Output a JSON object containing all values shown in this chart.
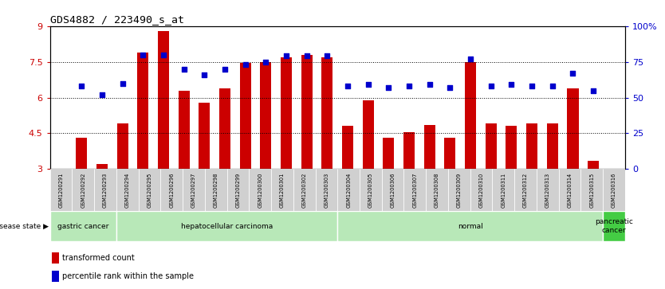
{
  "title": "GDS4882 / 223490_s_at",
  "samples": [
    "GSM1200291",
    "GSM1200292",
    "GSM1200293",
    "GSM1200294",
    "GSM1200295",
    "GSM1200296",
    "GSM1200297",
    "GSM1200298",
    "GSM1200299",
    "GSM1200300",
    "GSM1200301",
    "GSM1200302",
    "GSM1200303",
    "GSM1200304",
    "GSM1200305",
    "GSM1200306",
    "GSM1200307",
    "GSM1200308",
    "GSM1200309",
    "GSM1200310",
    "GSM1200311",
    "GSM1200312",
    "GSM1200313",
    "GSM1200314",
    "GSM1200315",
    "GSM1200316"
  ],
  "bar_values": [
    4.3,
    3.2,
    4.9,
    7.9,
    8.8,
    6.3,
    5.8,
    6.4,
    7.45,
    7.5,
    7.7,
    7.8,
    7.7,
    4.8,
    5.9,
    4.3,
    4.55,
    4.85,
    4.3,
    7.5,
    4.9,
    4.8,
    4.9,
    4.9,
    6.4,
    3.35
  ],
  "dot_pct": [
    58,
    52,
    60,
    80,
    80,
    70,
    66,
    70,
    73,
    75,
    79,
    79,
    79,
    58,
    59,
    57,
    58,
    59,
    57,
    77,
    58,
    59,
    58,
    58,
    67,
    55
  ],
  "bar_color": "#cc0000",
  "dot_color": "#0000cc",
  "ylim_left": [
    3,
    9
  ],
  "yticks_left": [
    3,
    4.5,
    6,
    7.5,
    9
  ],
  "ytick_labels_left": [
    "3",
    "4.5",
    "6",
    "7.5",
    "9"
  ],
  "yticks_right_pct": [
    0,
    25,
    50,
    75,
    100
  ],
  "ytick_labels_right": [
    "0",
    "25",
    "50",
    "75",
    "100%"
  ],
  "grid_pct": [
    25,
    50,
    75
  ],
  "disease_groups": [
    {
      "label": "gastric cancer",
      "start": 0,
      "end": 3
    },
    {
      "label": "hepatocellular carcinoma",
      "start": 3,
      "end": 13
    },
    {
      "label": "normal",
      "start": 13,
      "end": 25
    },
    {
      "label": "pancreatic\ncancer",
      "start": 25,
      "end": 26
    }
  ],
  "group_colors": [
    "#b8e8b8",
    "#b8e8b8",
    "#b8e8b8",
    "#44cc44"
  ],
  "disease_state_label": "disease state",
  "legend_red_label": "transformed count",
  "legend_blue_label": "percentile rank within the sample",
  "background_color": "#ffffff",
  "plot_bg_color": "#ffffff",
  "tick_color_left": "#cc0000",
  "tick_color_right": "#0000cc",
  "xtick_bg": "#d0d0d0"
}
